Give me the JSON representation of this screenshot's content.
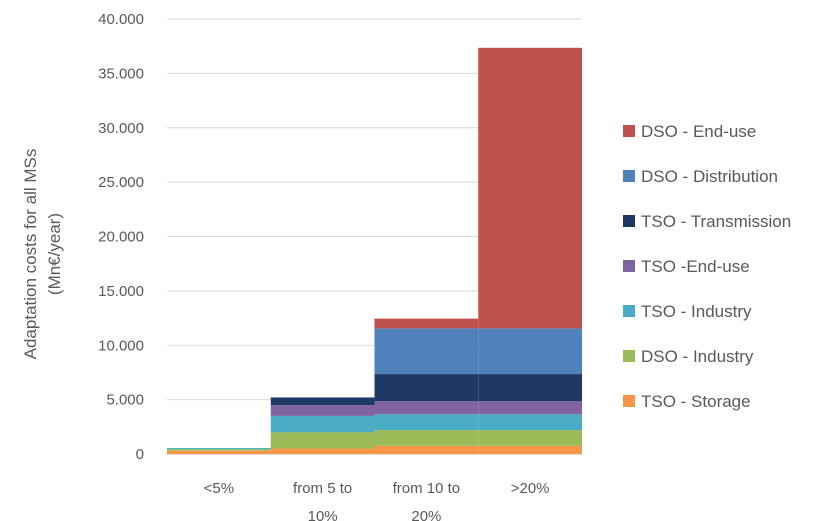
{
  "chart_data": {
    "type": "bar",
    "stacked": true,
    "ylabel_lines": [
      "Adaptation costs for all MSs",
      "(Mn€/year)"
    ],
    "xlabel": "",
    "ylim": [
      0,
      40000
    ],
    "yticks": [
      0,
      5000,
      10000,
      15000,
      20000,
      25000,
      30000,
      35000,
      40000
    ],
    "ytick_labels": [
      "0",
      "5.000",
      "10.000",
      "15.000",
      "20.000",
      "25.000",
      "30.000",
      "35.000",
      "40.000"
    ],
    "grid": true,
    "legend_position": "right",
    "categories": [
      [
        "<5%"
      ],
      [
        "from 5 to",
        "10%"
      ],
      [
        "from 10 to",
        "20%"
      ],
      [
        ">20%"
      ]
    ],
    "series": [
      {
        "name": "TSO - Storage",
        "color": "#f79646",
        "values": [
          300,
          500,
          750,
          750
        ]
      },
      {
        "name": "DSO - Industry",
        "color": "#9bbb59",
        "values": [
          150,
          1500,
          1450,
          1450
        ]
      },
      {
        "name": "TSO - Industry",
        "color": "#4bacc6",
        "values": [
          100,
          1500,
          1450,
          1450
        ]
      },
      {
        "name": "TSO -End-use",
        "color": "#8064a2",
        "values": [
          0,
          1000,
          1200,
          1200
        ]
      },
      {
        "name": "TSO - Transmission",
        "color": "#1f3864",
        "values": [
          0,
          700,
          2500,
          2500
        ]
      },
      {
        "name": "DSO - Distribution",
        "color": "#4f81bd",
        "values": [
          0,
          0,
          4200,
          4200
        ]
      },
      {
        "name": "DSO - End-use",
        "color": "#c0504d",
        "values": [
          0,
          0,
          900,
          25800
        ]
      }
    ]
  }
}
